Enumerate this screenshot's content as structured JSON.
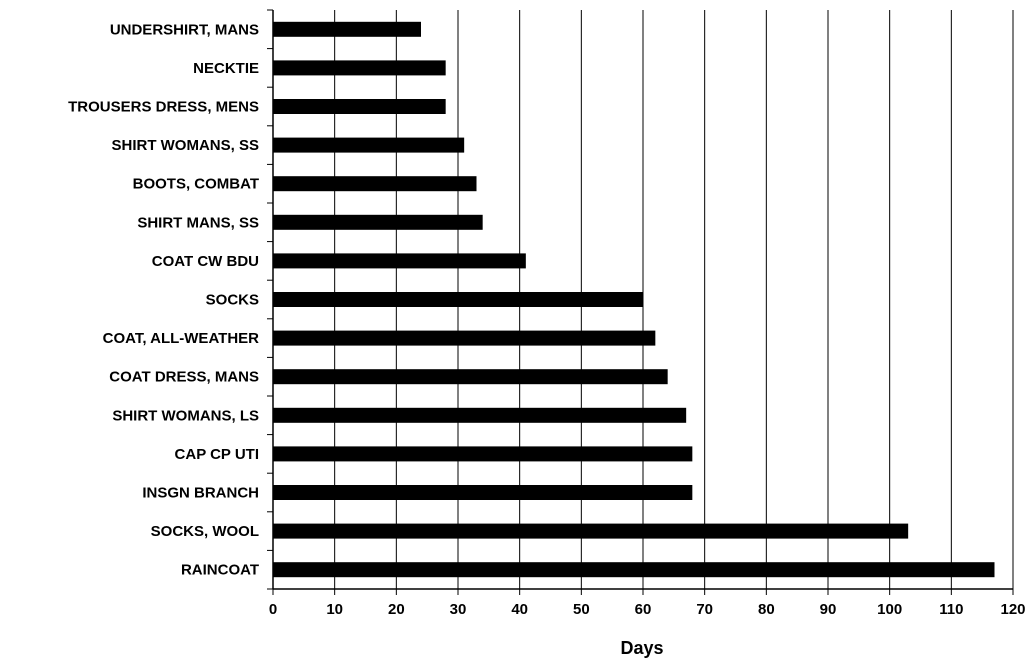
{
  "chart_data": {
    "type": "bar",
    "orientation": "horizontal",
    "title": "",
    "xlabel": "Days",
    "ylabel": "",
    "xlim": [
      0,
      120
    ],
    "x_ticks": [
      "0",
      "10",
      "20",
      "30",
      "40",
      "50",
      "60",
      "70",
      "80",
      "90",
      "100",
      "110",
      "120"
    ],
    "grid": "vertical",
    "bar_color": "#000000",
    "categories": [
      "UNDERSHIRT, MANS",
      "NECKTIE",
      "TROUSERS DRESS, MENS",
      "SHIRT WOMANS, SS",
      "BOOTS, COMBAT",
      "SHIRT MANS, SS",
      "COAT CW BDU",
      "SOCKS",
      "COAT, ALL-WEATHER",
      "COAT DRESS, MANS",
      "SHIRT WOMANS, LS",
      "CAP CP UTI",
      "INSGN BRANCH",
      "SOCKS, WOOL",
      "RAINCOAT"
    ],
    "values": [
      24,
      28,
      28,
      31,
      33,
      34,
      41,
      60,
      62,
      64,
      67,
      68,
      68,
      103,
      117
    ]
  }
}
